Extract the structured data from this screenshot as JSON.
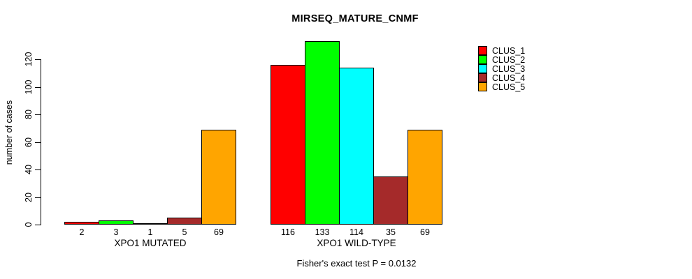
{
  "chart_data": {
    "type": "bar",
    "title": "MIRSEQ_MATURE_CNMF",
    "ylabel": "number of cases",
    "xlabel": "",
    "footnote": "Fisher's exact test P = 0.0132",
    "categories": [
      "XPO1 MUTATED",
      "XPO1 WILD-TYPE"
    ],
    "series": [
      {
        "name": "CLUS_1",
        "color": "#FF0000",
        "values": [
          2,
          116
        ]
      },
      {
        "name": "CLUS_2",
        "color": "#00FF00",
        "values": [
          3,
          133
        ]
      },
      {
        "name": "CLUS_3",
        "color": "#00FFFF",
        "values": [
          1,
          114
        ]
      },
      {
        "name": "CLUS_4",
        "color": "#A52A2A",
        "values": [
          5,
          35
        ]
      },
      {
        "name": "CLUS_5",
        "color": "#FFA500",
        "values": [
          69,
          69
        ]
      }
    ],
    "yticks": [
      0,
      20,
      40,
      60,
      80,
      100,
      120
    ],
    "ylim": [
      0,
      133
    ],
    "bar_value_labels_shown": true,
    "grid": "off",
    "legend_position": "top-right",
    "axis_color": "#000000",
    "background_color": "#FFFFFF"
  }
}
